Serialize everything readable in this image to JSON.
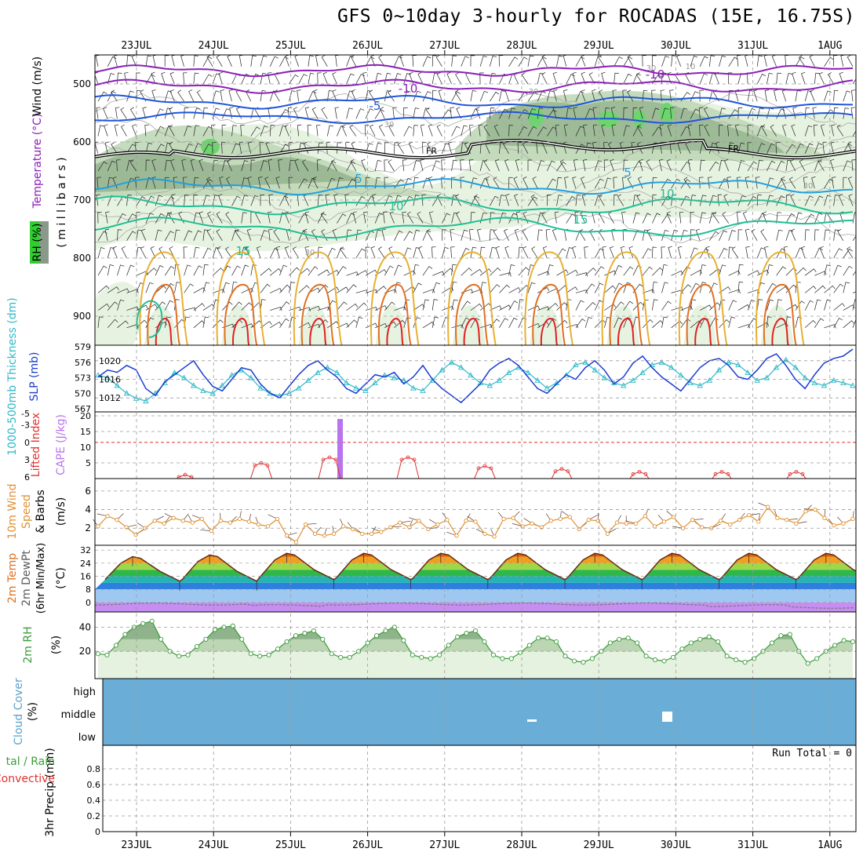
{
  "title": "GFS 0~10day 3-hourly for ROCADAS (15E, 16.75S)",
  "dates": [
    "23JUL",
    "24JUL",
    "25JUL",
    "26JUL",
    "27JUL",
    "28JUL",
    "29JUL",
    "30JUL",
    "31JUL",
    "1AUG"
  ],
  "colors": {
    "grid": "#9a9a9a",
    "purple": "#8a1fb8",
    "blue": "#1e55d8",
    "cyan": "#20a0e0",
    "teal": "#1fbf95",
    "orange_light": "#e8b030",
    "orange": "#e07020",
    "red": "#e02020",
    "rh_light": "#e7f3e1",
    "rh_mid": "#bcd6b4",
    "rh_dark": "#8fae88",
    "rh_peak": "#6bd66b",
    "cloud": "#6aaed8",
    "slp": "#1a3bd0",
    "thick": "#30b8c8",
    "cape": "#b873ee",
    "li": "#e03030",
    "wind10": "#e09030",
    "rh2m": "#3a9a3a"
  },
  "labels": {
    "upper": {
      "rh": "RH (%)",
      "temp": "Temperature (°C)",
      "wind": "Wind (m/s)",
      "pressure": "( m i l l i b a r s )",
      "freezing": "FR",
      "contour_labels": [
        "-10",
        "-10",
        "-5",
        "5",
        "5",
        "10",
        "10",
        "15",
        "15",
        "30",
        "30",
        "30",
        "30",
        "30",
        "30",
        "10"
      ]
    },
    "slp_panel": {
      "thick": "1000-500mb Thickness (dm)",
      "slp": "SLP (mb)"
    },
    "cape_panel": {
      "li": "Lifted Index",
      "cape": "CAPE (J/kg)"
    },
    "wind_panel": {
      "l1": "10m Wind",
      "l2": "Speed",
      "l3": "& Barbs",
      "unit": "(m/s)"
    },
    "temp_panel": {
      "l1": "2m Temp",
      "l2": "2m DewPt",
      "l3": "(6hr Min/Max)",
      "unit": "(°C)"
    },
    "rh_panel": {
      "l1": "2m RH",
      "unit": "(%)"
    },
    "cloud_panel": {
      "l1": "Cloud Cover",
      "unit": "(%)",
      "levels": [
        "high",
        "middle",
        "low"
      ]
    },
    "precip_panel": {
      "l1": "tal / Rain",
      "l2": "Convective",
      "l3": "3hr Precip (mm)",
      "run_total": "Run Total = 0"
    }
  },
  "chart_data": [
    {
      "type": "contour",
      "panel": "upper-air cross-section",
      "y_axis": {
        "label": "(millibars)",
        "ticks": [
          500,
          600,
          700,
          800,
          900
        ],
        "range": [
          450,
          950
        ]
      },
      "x_axis": {
        "ticks": [
          "23JUL",
          "24JUL",
          "25JUL",
          "26JUL",
          "27JUL",
          "28JUL",
          "29JUL",
          "30JUL",
          "31JUL",
          "1AUG"
        ]
      },
      "series": [
        {
          "name": "Temperature",
          "contour_levels": [
            -10,
            -5,
            0,
            5,
            10,
            15
          ]
        },
        {
          "name": "RH",
          "contour_levels": [
            30,
            60,
            90
          ]
        }
      ],
      "annotations": [
        "FR"
      ]
    },
    {
      "type": "line",
      "panel": "SLP / Thickness",
      "y_left": {
        "label": "1000-500mb Thickness (dm)",
        "ticks": [
          567,
          570,
          573,
          576,
          579
        ]
      },
      "y_right": {
        "label": "SLP (mb)",
        "ticks": [
          1012,
          1016,
          1020
        ]
      },
      "series": [
        {
          "name": "SLP (mb)",
          "values": [
            1016.5,
            1018,
            1017.5,
            1019,
            1018,
            1014,
            1012.5,
            1015.5,
            1017,
            1018.5,
            1020,
            1017,
            1014.5,
            1013.5,
            1016,
            1018.5,
            1018,
            1015,
            1013,
            1012,
            1014.5,
            1017,
            1019,
            1020,
            1018,
            1016.5,
            1014,
            1013,
            1015,
            1017,
            1016.5,
            1017.5,
            1015,
            1016.5,
            1019,
            1016,
            1014,
            1012.5,
            1011,
            1013,
            1015,
            1018,
            1019.5,
            1020.5,
            1019,
            1016.5,
            1014,
            1013,
            1015,
            1017,
            1016,
            1018.5,
            1020,
            1018,
            1015,
            1016.5,
            1019.5,
            1021,
            1018.5,
            1016.5,
            1015,
            1013.5,
            1016,
            1018.5,
            1020,
            1020.5,
            1019,
            1016.5,
            1016,
            1018,
            1020.5,
            1021.5,
            1019,
            1016,
            1014,
            1017,
            1019.5,
            1020.5,
            1021,
            1022.5
          ]
        },
        {
          "name": "Thickness (dm)",
          "values": [
            573.5,
            573,
            571.5,
            570,
            569,
            568.5,
            570,
            572,
            574,
            573,
            571.5,
            570.5,
            570,
            571.5,
            573.5,
            574.5,
            573,
            571,
            570,
            569.5,
            570,
            571,
            572.5,
            574,
            575,
            574,
            572,
            571,
            570.5,
            572,
            573.5,
            573,
            572.5,
            571,
            570.5,
            572.5,
            574.5,
            576,
            575,
            573.5,
            572,
            571.5,
            572.5,
            574,
            575,
            574,
            572.5,
            571,
            572,
            573.5,
            575.5,
            576,
            574.5,
            573,
            572,
            571.5,
            572.5,
            574,
            575.5,
            576,
            575,
            573.5,
            572,
            571.5,
            572.5,
            574.5,
            576,
            575.5,
            574,
            572.5,
            573,
            575,
            576.5,
            575,
            573,
            572,
            571.5,
            572.5,
            572,
            571.5
          ]
        }
      ]
    },
    {
      "type": "line",
      "panel": "CAPE / Lifted Index",
      "y_left": {
        "label": "Lifted Index",
        "ticks": [
          -5,
          -3,
          0,
          3,
          6
        ]
      },
      "y_right": {
        "label": "CAPE (J/kg)",
        "ticks": [
          5,
          10,
          15,
          20
        ]
      },
      "series": [
        {
          "name": "Lifted Index",
          "peaks": [
            {
              "x": "24JUL 15Z",
              "value": 6
            },
            {
              "x": "25JUL 15Z",
              "value": 4
            },
            {
              "x": "26JUL 15Z",
              "value": 3
            },
            {
              "x": "27JUL 12Z",
              "value": 3
            },
            {
              "x": "28JUL 15Z",
              "value": 4.5
            },
            {
              "x": "29JUL 15Z",
              "value": 5
            },
            {
              "x": "30JUL 15Z",
              "value": 5.5
            },
            {
              "x": "31JUL 15Z",
              "value": 5.5
            }
          ]
        },
        {
          "name": "CAPE (J/kg)",
          "bars": [
            {
              "x": "25JUL 15Z",
              "value": 19
            }
          ]
        }
      ]
    },
    {
      "type": "line",
      "panel": "10m Wind",
      "y_axis": {
        "label": "(m/s)",
        "ticks": [
          2,
          4,
          6
        ]
      },
      "series": [
        {
          "name": "10m Wind Speed",
          "values": [
            2.2,
            3.3,
            2.9,
            2.1,
            1.3,
            2,
            2.8,
            2.5,
            3.1,
            2.8,
            2.6,
            3,
            1.7,
            2.8,
            2.6,
            3,
            2.7,
            2.4,
            2.2,
            3,
            1.2,
            0.5,
            2.4,
            1.4,
            1.2,
            1.4,
            2.2,
            1.9,
            1.4,
            1.4,
            1.6,
            2.1,
            2.6,
            2.1,
            2.8,
            1.9,
            2.4,
            2.9,
            1.2,
            2.8,
            2.7,
            1.4,
            1.1,
            3,
            3.1,
            2.2,
            2.5,
            2.1,
            2.8,
            3,
            3.2,
            1.9,
            2.9,
            2.8,
            1.4,
            2.6,
            2.5,
            2.5,
            3.3,
            2.2,
            2.7,
            3.2,
            2,
            2.9,
            2.1,
            2,
            2.8,
            2.4,
            2.9,
            3.4,
            2.7,
            4.3,
            3.1,
            2.9,
            2.5,
            3.8,
            4,
            3.1,
            2.3,
            2.5,
            3
          ]
        }
      ]
    },
    {
      "type": "area",
      "panel": "2m Temp / DewPt",
      "y_axis": {
        "label": "(°C)",
        "ticks": [
          0,
          8,
          16,
          24,
          32
        ]
      },
      "series": [
        {
          "name": "2m Temp daily max",
          "values": [
            28,
            29,
            30,
            30,
            30,
            30,
            30,
            30,
            30,
            30
          ]
        },
        {
          "name": "2m Temp daily min",
          "values": [
            13,
            13,
            14,
            14,
            14,
            14,
            14,
            14,
            14,
            14
          ]
        },
        {
          "name": "2m DewPt",
          "values": [
            -1,
            -1,
            -2,
            -1,
            -1,
            -1,
            -1,
            -1,
            -2,
            -3
          ]
        }
      ]
    },
    {
      "type": "area",
      "panel": "2m RH",
      "y_axis": {
        "label": "(%)",
        "ticks": [
          20,
          40
        ]
      },
      "series": [
        {
          "name": "2m RH",
          "values": [
            18,
            17,
            25,
            34,
            40,
            43,
            45,
            30,
            20,
            16,
            17,
            24,
            30,
            38,
            40,
            41,
            30,
            18,
            16,
            17,
            22,
            28,
            33,
            35,
            37,
            30,
            18,
            15,
            15,
            20,
            27,
            33,
            37,
            40,
            29,
            17,
            15,
            14,
            17,
            25,
            32,
            35,
            37,
            28,
            17,
            14,
            14,
            19,
            25,
            31,
            31,
            28,
            16,
            12,
            11,
            14,
            20,
            27,
            30,
            31,
            27,
            16,
            13,
            12,
            15,
            22,
            27,
            30,
            32,
            28,
            16,
            13,
            11,
            14,
            20,
            27,
            33,
            34,
            20,
            10,
            14,
            20,
            25,
            29,
            28
          ]
        }
      ]
    },
    {
      "type": "heatmap",
      "panel": "Cloud Cover",
      "y_axis": {
        "categories": [
          "high",
          "middle",
          "low"
        ]
      },
      "series": [
        {
          "name": "Cloud Cover",
          "fill": "uniform",
          "exceptions": [
            "28JUL 03Z",
            "29JUL 21Z"
          ]
        }
      ]
    },
    {
      "type": "bar",
      "panel": "3hr Precip",
      "y_axis": {
        "label": "3hr Precip (mm)",
        "ticks": [
          0,
          0.2,
          0.4,
          0.6,
          0.8
        ],
        "range": [
          0,
          1
        ]
      },
      "series": [
        {
          "name": "Total / Rain",
          "values": []
        },
        {
          "name": "Convective",
          "values": []
        }
      ],
      "annotations": [
        "Run Total = 0"
      ]
    }
  ]
}
